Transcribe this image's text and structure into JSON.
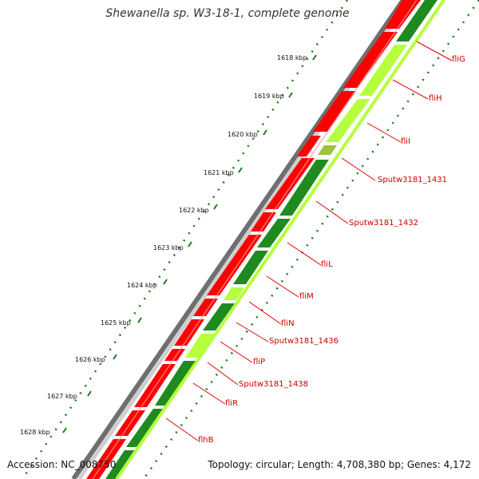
{
  "title": "Shewanella sp. W3-18-1, complete genome",
  "accession": "Accession: NC_008750",
  "topology": "Topology: circular; Length: 4,708,380 bp; Genes: 4,172",
  "colors": {
    "background": "#ffffff",
    "backbone_dark": "#777777",
    "backbone_light": "#c8c8c8",
    "forward_cds": "#ff0000",
    "forward_cds_highlight": "#ff9a9a",
    "reverse_cds": "#1f8a1f",
    "reverse_cds_light": "#b6ff3c",
    "tick": "#1a7a1a",
    "label_line": "#e00000",
    "label_text": "#cc0000"
  },
  "kbp_ticks": [
    "1618 kbp",
    "1619 kbp",
    "1620 kbp",
    "1621 kbp",
    "1622 kbp",
    "1623 kbp",
    "1624 kbp",
    "1625 kbp",
    "1626 kbp",
    "1627 kbp",
    "1628 kbp"
  ],
  "gene_labels": [
    "fliG",
    "fliH",
    "fliI",
    "Sputw3181_1431",
    "Sputw3181_1432",
    "fliL",
    "fliM",
    "fliN",
    "Sputw3181_1436",
    "fliP",
    "Sputw3181_1438",
    "fliR",
    "flhB"
  ]
}
